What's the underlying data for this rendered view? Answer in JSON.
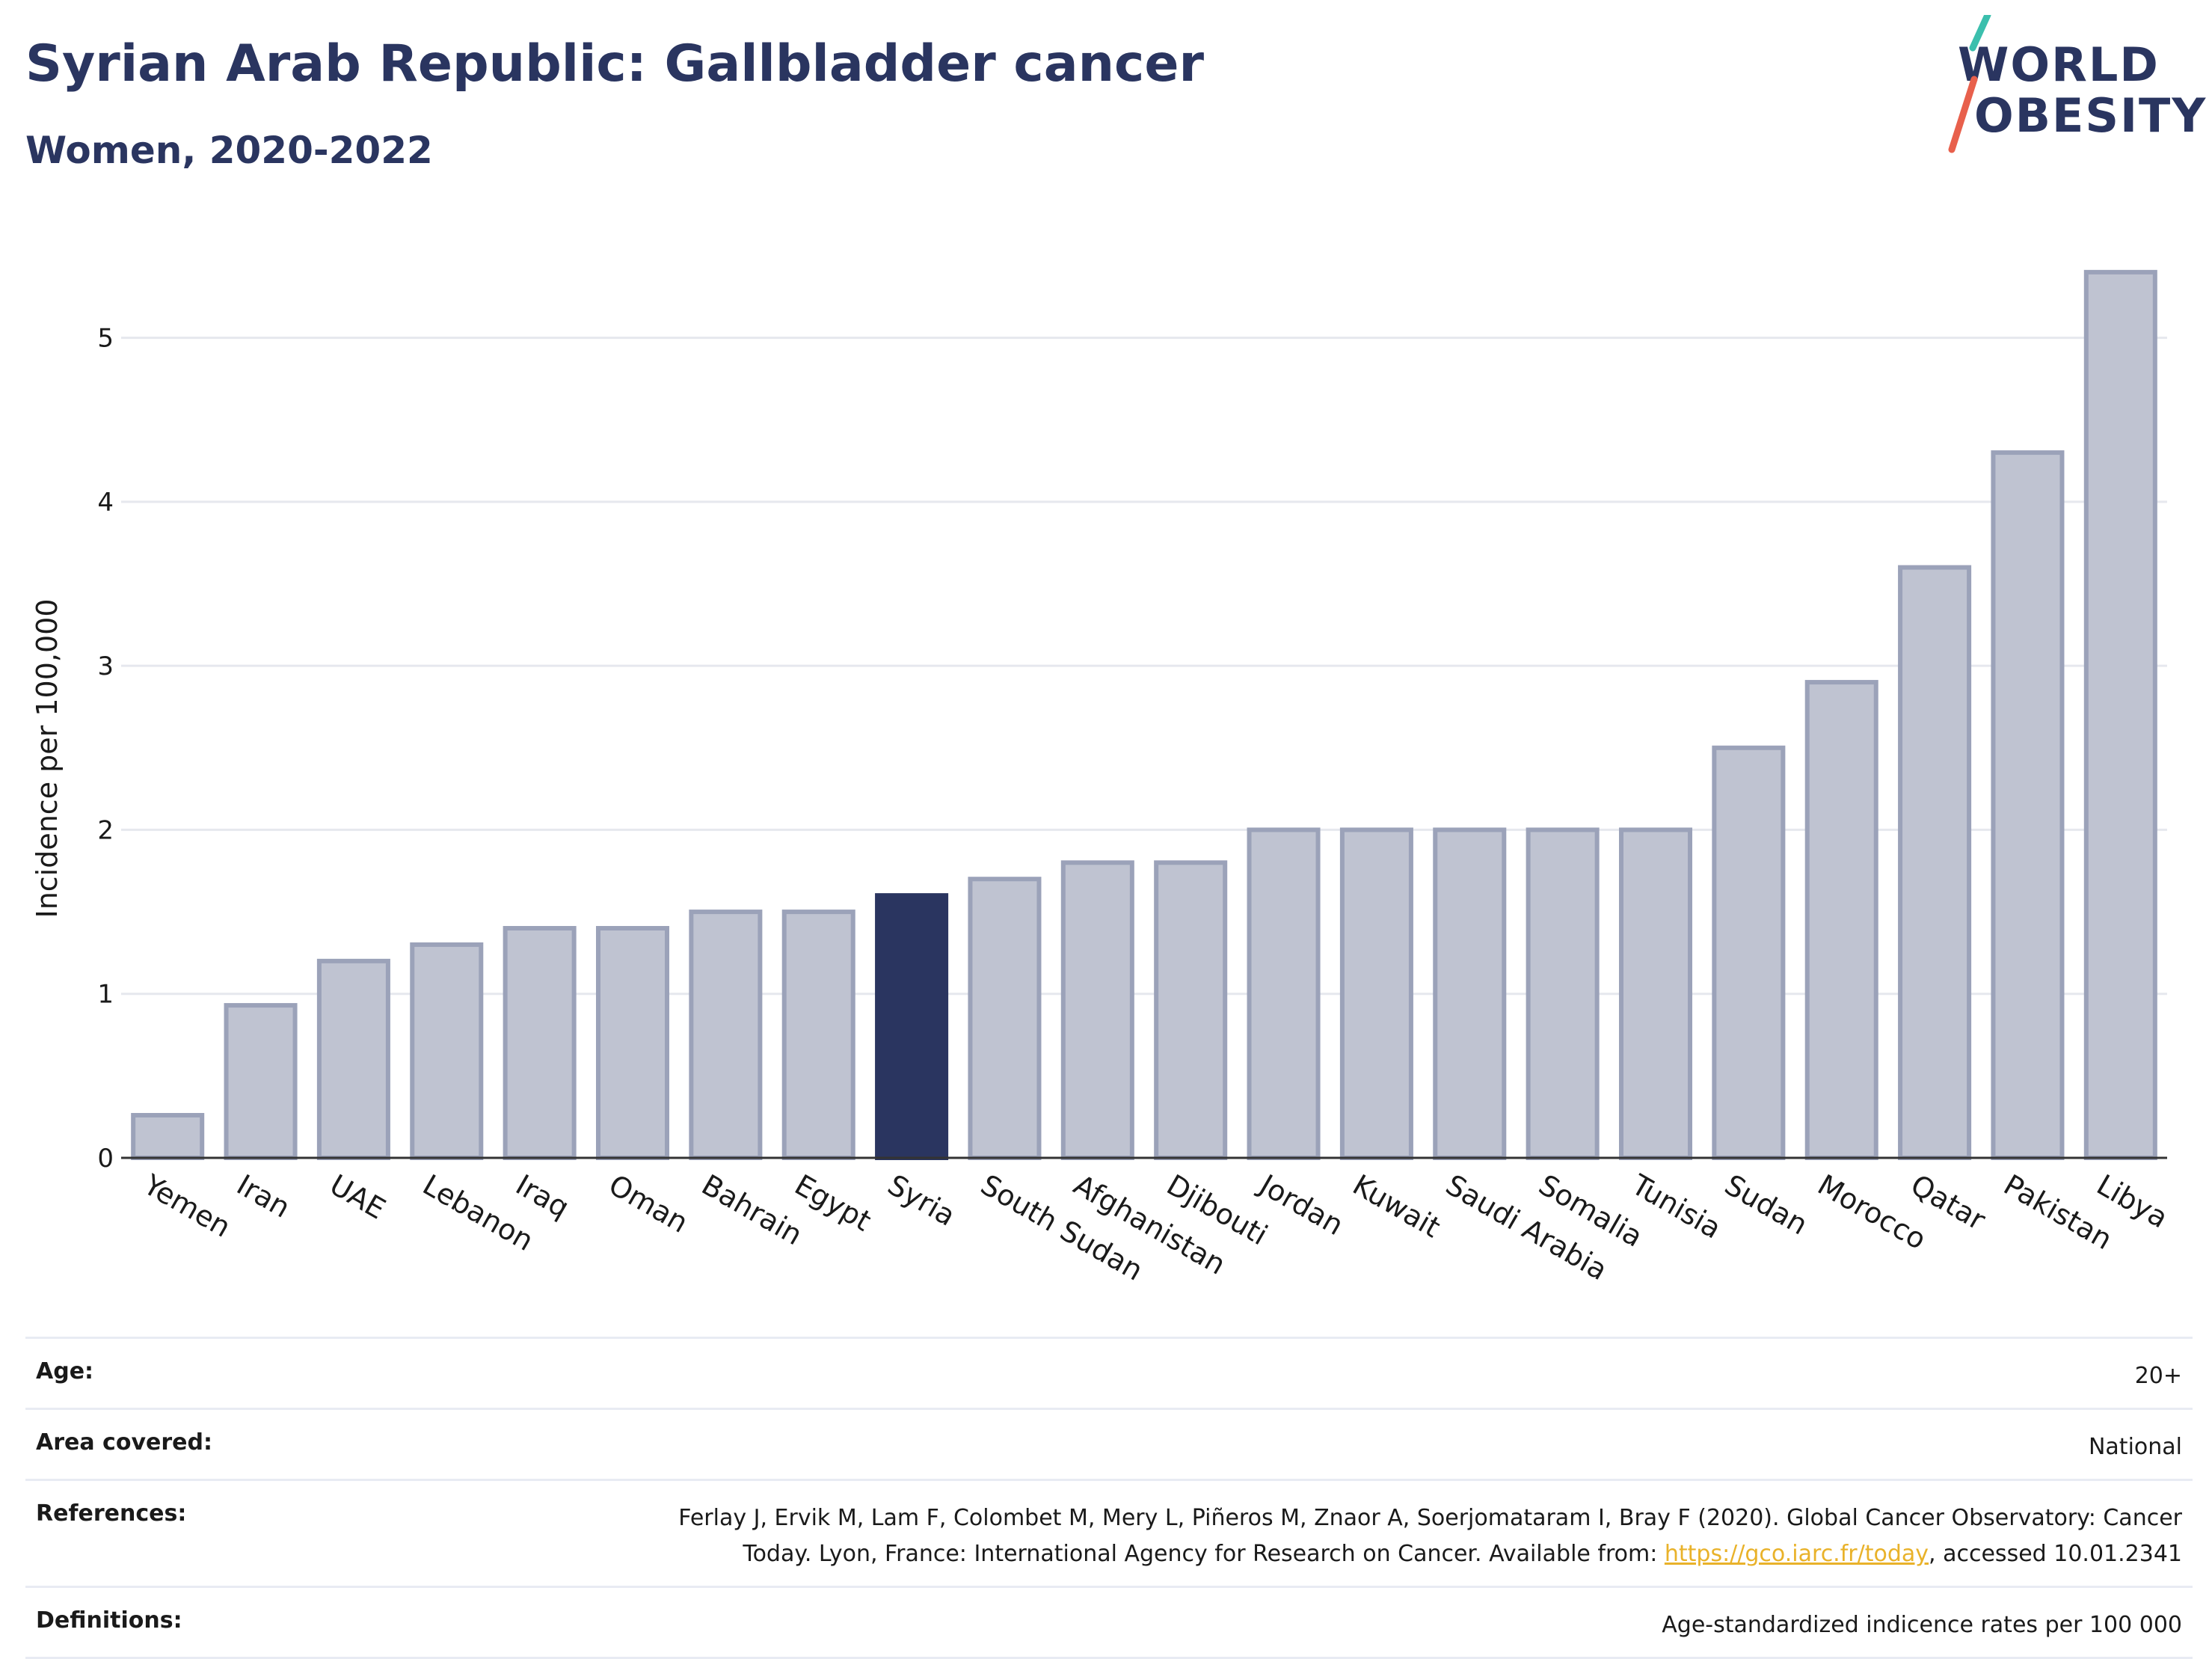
{
  "header": {
    "title": "Syrian Arab Republic: Gallbladder cancer",
    "subtitle": "Women, 2020-2022"
  },
  "logo": {
    "line1": "WORLD",
    "line2": "OBESITY",
    "slash_colors": [
      "#3bbfad",
      "#e8604c"
    ]
  },
  "colors": {
    "bar_default": "#bfc3d1",
    "bar_default_stroke": "#9ba2b9",
    "bar_highlight": "#2a3560",
    "gridline": "#e6e8ee",
    "text": "#2a3560",
    "link": "#e9b22a"
  },
  "chart_data": {
    "type": "bar",
    "title": "Syrian Arab Republic: Gallbladder cancer",
    "subtitle": "Women, 2020-2022",
    "ylabel": "Incidence per 100,000",
    "xlabel": "",
    "ylim": [
      0,
      5.6
    ],
    "yticks": [
      0,
      1,
      2,
      3,
      4,
      5
    ],
    "grid": true,
    "highlight": "Syria",
    "categories": [
      "Yemen",
      "Iran",
      "UAE",
      "Lebanon",
      "Iraq",
      "Oman",
      "Bahrain",
      "Egypt",
      "Syria",
      "South Sudan",
      "Afghanistan",
      "Djibouti",
      "Jordan",
      "Kuwait",
      "Saudi Arabia",
      "Somalia",
      "Tunisia",
      "Sudan",
      "Morocco",
      "Qatar",
      "Pakistan",
      "Libya"
    ],
    "values": [
      0.26,
      0.93,
      1.2,
      1.3,
      1.4,
      1.4,
      1.5,
      1.5,
      1.6,
      1.7,
      1.8,
      1.8,
      2.0,
      2.0,
      2.0,
      2.0,
      2.0,
      2.5,
      2.9,
      3.6,
      4.3,
      5.4
    ]
  },
  "info": {
    "age_label": "Age:",
    "age_value": "20+",
    "area_label": "Area covered:",
    "area_value": "National",
    "references_label": "References:",
    "references_line1": "Ferlay J, Ervik M, Lam F, Colombet M, Mery L, Piñeros M, Znaor A, Soerjomataram I, Bray F (2020). Global Cancer Observatory: Cancer",
    "references_line2_prefix": "Today. Lyon, France: International Agency for Research on Cancer. Available from: ",
    "references_link": "https://gco.iarc.fr/today",
    "references_line2_suffix": ", accessed 10.01.2341",
    "definitions_label": "Definitions:",
    "definitions_value": "Age-standardized indicence rates per 100 000"
  }
}
